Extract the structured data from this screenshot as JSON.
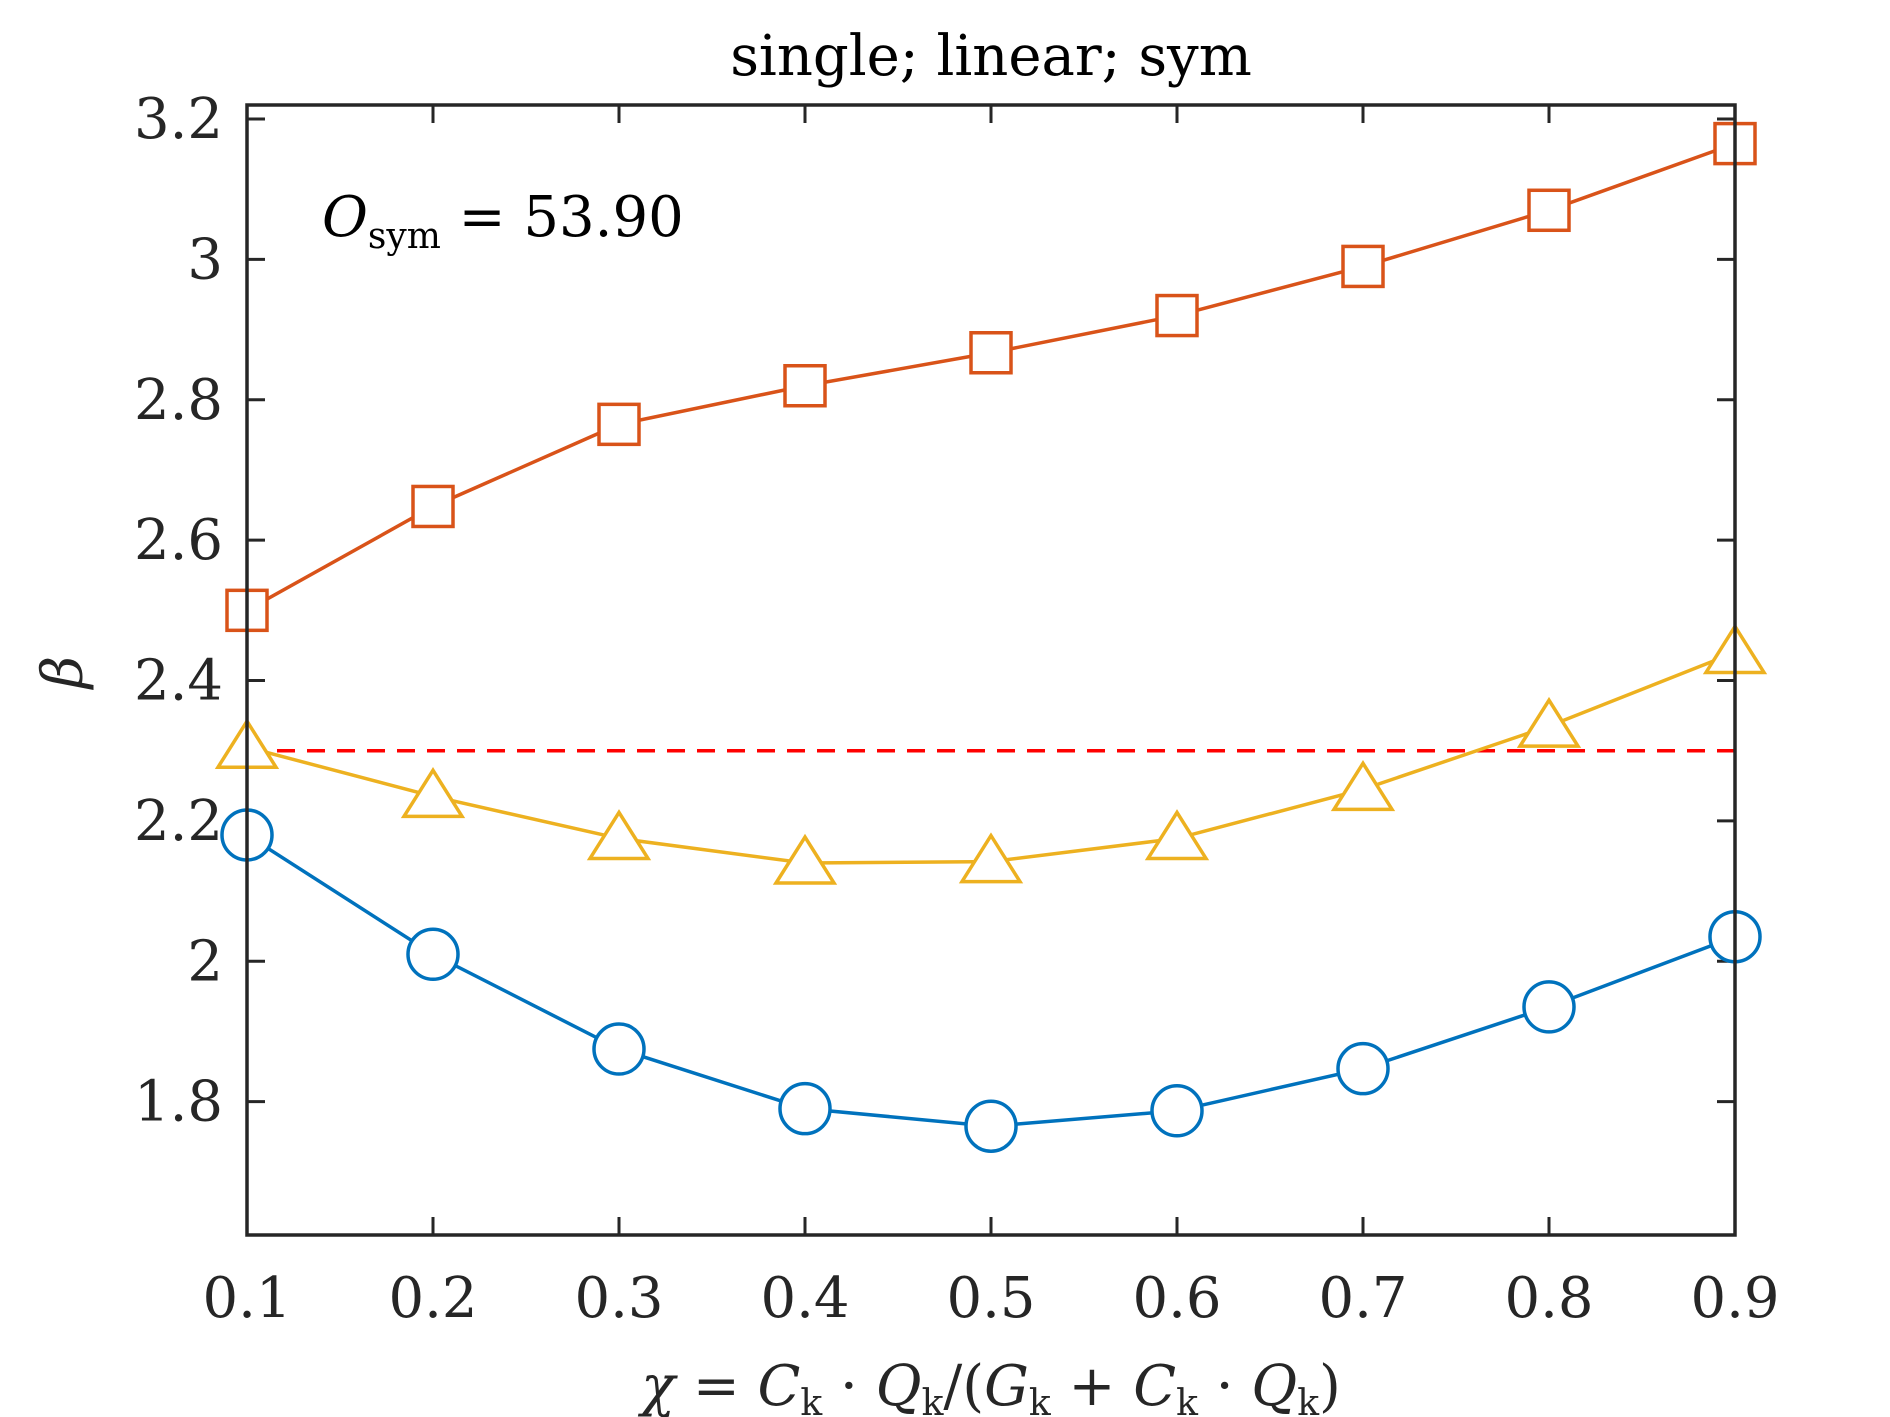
{
  "chart_data": {
    "type": "line",
    "title": "single; linear; sym",
    "xlabel": {
      "full": "χ = C_k · Q_k/(G_k + C_k · Q_k)",
      "parts": [
        "χ",
        " = ",
        "C",
        "k",
        " · ",
        "Q",
        "k",
        "/(",
        "G",
        "k",
        " + ",
        "C",
        "k",
        " · ",
        "Q",
        "k",
        ")"
      ]
    },
    "ylabel": "β",
    "x": [
      0.1,
      0.2,
      0.3,
      0.4,
      0.5,
      0.6,
      0.7,
      0.8,
      0.9
    ],
    "xlim": [
      0.1,
      0.9
    ],
    "ylim": [
      1.61,
      3.22
    ],
    "xticks": [
      "0.1",
      "0.2",
      "0.3",
      "0.4",
      "0.5",
      "0.6",
      "0.7",
      "0.8",
      "0.9"
    ],
    "xtick_values": [
      0.1,
      0.2,
      0.3,
      0.4,
      0.5,
      0.6,
      0.7,
      0.8,
      0.9
    ],
    "yticks": [
      "1.8",
      "2",
      "2.2",
      "2.4",
      "2.6",
      "2.8",
      "3",
      "3.2"
    ],
    "ytick_values": [
      1.8,
      2.0,
      2.2,
      2.4,
      2.6,
      2.8,
      3.0,
      3.2
    ],
    "grid": false,
    "series": [
      {
        "marker": "circle",
        "color": "#0072BD",
        "values": [
          2.18,
          2.01,
          1.875,
          1.79,
          1.765,
          1.787,
          1.847,
          1.935,
          2.035
        ]
      },
      {
        "marker": "square",
        "color": "#D95319",
        "values": [
          2.5,
          2.648,
          2.765,
          2.82,
          2.867,
          2.92,
          2.99,
          3.07,
          3.165
        ]
      },
      {
        "marker": "triangle",
        "color": "#EDB120",
        "values": [
          2.305,
          2.235,
          2.175,
          2.14,
          2.142,
          2.175,
          2.245,
          2.335,
          2.44
        ]
      }
    ],
    "reference_line": {
      "y": 2.3,
      "color": "#FF0000",
      "style": "dashed"
    },
    "annotation": {
      "main": "O",
      "sub": "sym",
      "rest": " = 53.90"
    }
  }
}
